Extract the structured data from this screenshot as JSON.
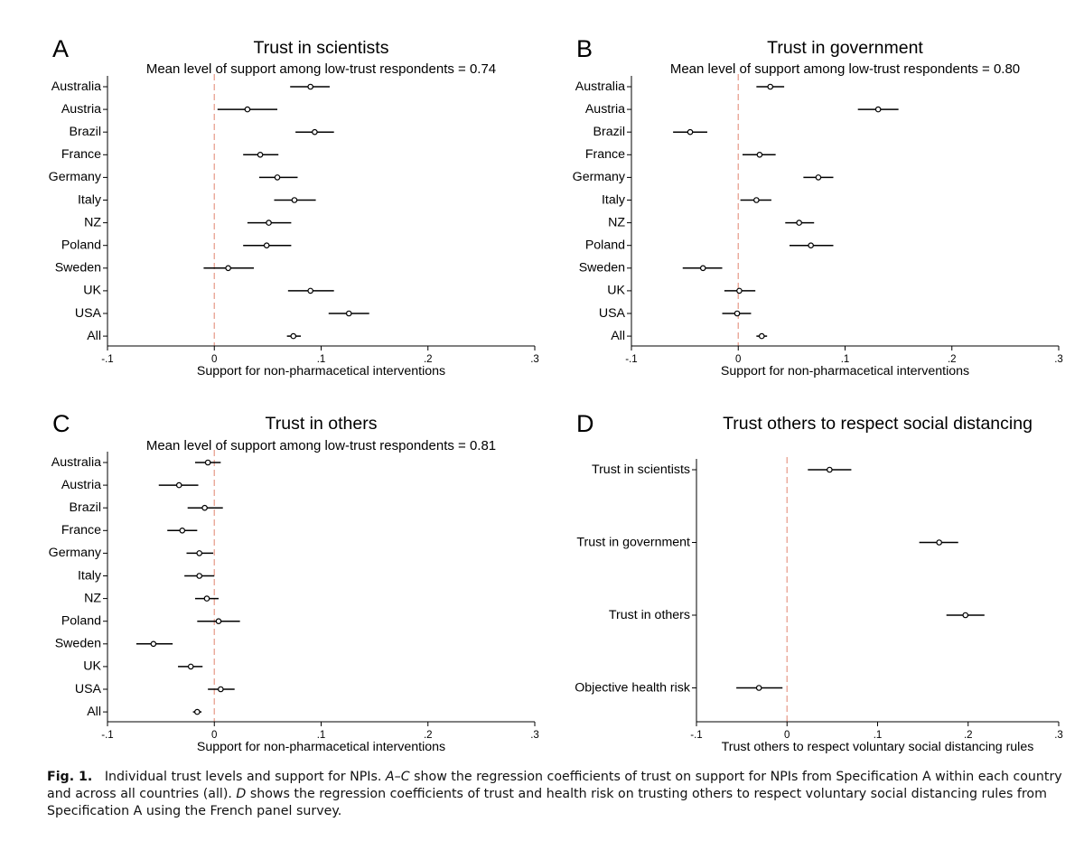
{
  "chart_data": [
    {
      "panel": "A",
      "type": "scatter",
      "title": "Trust in scientists",
      "subtitle": "Mean level of support among low-trust respondents = 0.74",
      "xlabel": "Support for non-pharmacetical interventions",
      "xlim": [
        -0.1,
        0.3
      ],
      "xticks": [
        -0.1,
        0,
        0.1,
        0.2,
        0.3
      ],
      "xtick_labels": [
        "-.1",
        "0",
        ".1",
        ".2",
        ".3"
      ],
      "reference_line": 0,
      "categories": [
        "Australia",
        "Austria",
        "Brazil",
        "France",
        "Germany",
        "Italy",
        "NZ",
        "Poland",
        "Sweden",
        "UK",
        "USA",
        "All"
      ],
      "estimates": [
        0.09,
        0.031,
        0.094,
        0.043,
        0.059,
        0.075,
        0.051,
        0.049,
        0.013,
        0.09,
        0.126,
        0.074
      ],
      "ci_low": [
        0.071,
        0.003,
        0.076,
        0.027,
        0.042,
        0.056,
        0.031,
        0.027,
        -0.01,
        0.069,
        0.107,
        0.068
      ],
      "ci_high": [
        0.108,
        0.059,
        0.112,
        0.06,
        0.078,
        0.095,
        0.072,
        0.072,
        0.037,
        0.112,
        0.145,
        0.081
      ]
    },
    {
      "panel": "B",
      "type": "scatter",
      "title": "Trust in government",
      "subtitle": "Mean level of support among low-trust respondents = 0.80",
      "xlabel": "Support for non-pharmacetical interventions",
      "xlim": [
        -0.1,
        0.3
      ],
      "xticks": [
        -0.1,
        0,
        0.1,
        0.2,
        0.3
      ],
      "xtick_labels": [
        "-.1",
        "0",
        ".1",
        ".2",
        ".3"
      ],
      "reference_line": 0,
      "categories": [
        "Australia",
        "Austria",
        "Brazil",
        "France",
        "Germany",
        "Italy",
        "NZ",
        "Poland",
        "Sweden",
        "UK",
        "USA",
        "All"
      ],
      "estimates": [
        0.03,
        0.131,
        -0.045,
        0.02,
        0.075,
        0.017,
        0.057,
        0.068,
        -0.033,
        0.001,
        -0.001,
        0.022
      ],
      "ci_low": [
        0.017,
        0.112,
        -0.061,
        0.004,
        0.061,
        0.002,
        0.044,
        0.048,
        -0.052,
        -0.013,
        -0.015,
        0.017
      ],
      "ci_high": [
        0.043,
        0.15,
        -0.029,
        0.035,
        0.089,
        0.031,
        0.071,
        0.089,
        -0.015,
        0.016,
        0.012,
        0.027
      ]
    },
    {
      "panel": "C",
      "type": "scatter",
      "title": "Trust in others",
      "subtitle": "Mean level of support among low-trust respondents = 0.81",
      "xlabel": "Support for non-pharmacetical interventions",
      "xlim": [
        -0.1,
        0.3
      ],
      "xticks": [
        -0.1,
        0,
        0.1,
        0.2,
        0.3
      ],
      "xtick_labels": [
        "-.1",
        "0",
        ".1",
        ".2",
        ".3"
      ],
      "reference_line": 0,
      "categories": [
        "Australia",
        "Austria",
        "Brazil",
        "France",
        "Germany",
        "Italy",
        "NZ",
        "Poland",
        "Sweden",
        "UK",
        "USA",
        "All"
      ],
      "estimates": [
        -0.006,
        -0.033,
        -0.009,
        -0.03,
        -0.014,
        -0.014,
        -0.007,
        0.004,
        -0.057,
        -0.022,
        0.006,
        -0.016
      ],
      "ci_low": [
        -0.018,
        -0.052,
        -0.025,
        -0.044,
        -0.026,
        -0.028,
        -0.018,
        -0.016,
        -0.073,
        -0.034,
        -0.006,
        -0.02
      ],
      "ci_high": [
        0.006,
        -0.015,
        0.008,
        -0.016,
        -0.001,
        0.0,
        0.004,
        0.024,
        -0.039,
        -0.011,
        0.019,
        -0.012
      ]
    },
    {
      "panel": "D",
      "type": "scatter",
      "title": "Trust others to respect social distancing",
      "xlabel": "Trust others to respect voluntary social distancing rules",
      "xlim": [
        -0.1,
        0.3
      ],
      "xticks": [
        -0.1,
        0,
        0.1,
        0.2,
        0.3
      ],
      "xtick_labels": [
        "-.1",
        "0",
        ".1",
        ".2",
        ".3"
      ],
      "reference_line": 0,
      "categories": [
        "Trust in scientists",
        "Trust in government",
        "Trust in others",
        "Objective health risk"
      ],
      "estimates": [
        0.047,
        0.168,
        0.197,
        -0.031
      ],
      "ci_low": [
        0.023,
        0.146,
        0.176,
        -0.056
      ],
      "ci_high": [
        0.071,
        0.189,
        0.218,
        -0.005
      ]
    }
  ],
  "caption": {
    "label": "Fig. 1.",
    "text_1": "Individual trust levels and support for NPIs. ",
    "ref_ac": "A–C",
    "text_2": " show the regression coefficients of trust on support for NPIs from Specification A within each country and across all countries (all). ",
    "ref_d": "D",
    "text_3": " shows the regression coefficients of trust and health risk on trusting others to respect voluntary social distancing rules from Specification A using the French panel survey."
  },
  "colors": {
    "reference_line": "#e8a090",
    "marker_fill": "#ffffff",
    "ink": "#000000"
  }
}
